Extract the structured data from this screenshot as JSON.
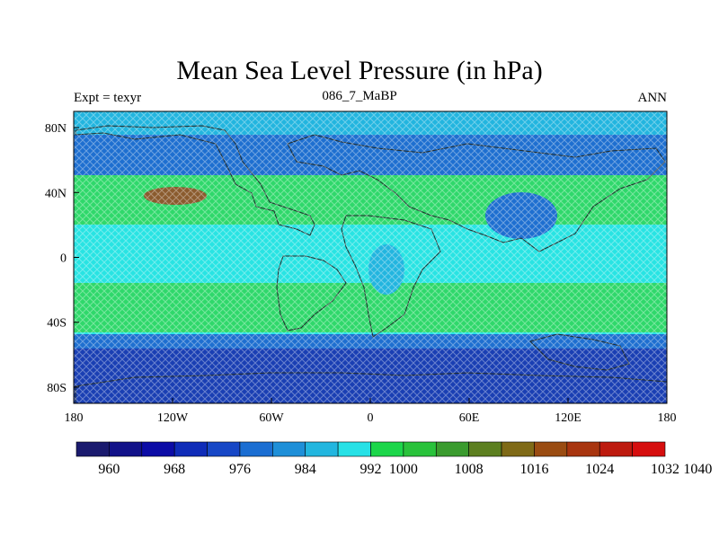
{
  "title": "Mean Sea Level Pressure (in hPa)",
  "left_label": "Expt = texyr",
  "center_label": "086_7_MaBP",
  "right_label": "ANN",
  "map": {
    "lon_range": [
      -180,
      180
    ],
    "lat_range": [
      -90,
      90
    ],
    "x_ticks": [
      {
        "lon": -180,
        "label": "180"
      },
      {
        "lon": -120,
        "label": "120W"
      },
      {
        "lon": -60,
        "label": "60W"
      },
      {
        "lon": 0,
        "label": "0"
      },
      {
        "lon": 60,
        "label": "60E"
      },
      {
        "lon": 120,
        "label": "120E"
      },
      {
        "lon": 180,
        "label": "180"
      }
    ],
    "y_ticks": [
      {
        "lat": 80,
        "label": "80N"
      },
      {
        "lat": 40,
        "label": "40N"
      },
      {
        "lat": 0,
        "label": "0"
      },
      {
        "lat": -40,
        "label": "40S"
      },
      {
        "lat": -80,
        "label": "80S"
      }
    ]
  },
  "colorbar": {
    "colors": [
      "#1a1a6e",
      "#121289",
      "#0c0ca6",
      "#0f2cb8",
      "#1747c6",
      "#1b6ed2",
      "#1e8fd8",
      "#22b6df",
      "#27e1e6",
      "#1cd64a",
      "#29c23b",
      "#3a9b2e",
      "#5c7f20",
      "#7f6a17",
      "#9a4c12",
      "#a8350f",
      "#bd1a0e",
      "#d60e0e"
    ],
    "labels": [
      {
        "index": 1,
        "label": "960"
      },
      {
        "index": 3,
        "label": "968"
      },
      {
        "index": 5,
        "label": "976"
      },
      {
        "index": 7,
        "label": "984"
      },
      {
        "index": 9,
        "label": "992"
      },
      {
        "index": 10,
        "label": "1000"
      },
      {
        "index": 12,
        "label": "1008"
      },
      {
        "index": 14,
        "label": "1016"
      },
      {
        "index": 16,
        "label": "1024"
      },
      {
        "index": 18,
        "label": "1032"
      },
      {
        "index": 19,
        "label": "1040"
      }
    ]
  },
  "field_colors": {
    "low_deep": "#1a3fb3",
    "low": "#1e6fd0",
    "mid": "#22b5df",
    "neutral": "#28e4e3",
    "high": "#2fd86b",
    "very_high": "#8a5b2e",
    "coast": "#1f2a2a"
  }
}
